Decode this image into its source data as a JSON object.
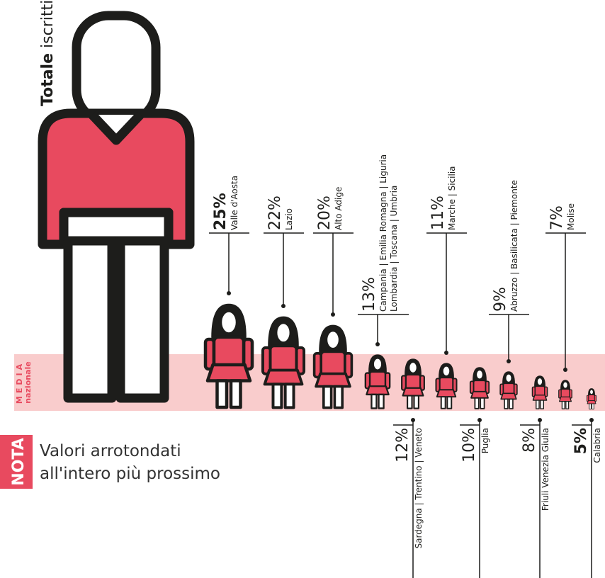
{
  "chart_data": {
    "type": "pictograph",
    "title": "Totale",
    "title_suffix": "iscritti",
    "band_label": "MEDIA",
    "band_sublabel": "nazionale",
    "note_tag": "NOTA",
    "note": [
      "Valori arrotondati",
      "all'intero più prossimo"
    ],
    "categories": [
      "Valle d'Aosta",
      "Lazio",
      "Alto Adige",
      [
        "Campania | Emilia Romagna | Liguria",
        "Lombardia | Toscana | Umbria"
      ],
      "Sardegna | Trentino | Veneto",
      "Marche | Sicilia",
      "Puglia",
      "Abruzzo | Basilicata | Piemonte",
      "Friuli Venezia Giulia",
      "Molise",
      "Calabria"
    ],
    "values": [
      25,
      22,
      20,
      13,
      12,
      11,
      10,
      9,
      8,
      7,
      5
    ],
    "value_labels": [
      "25%",
      "22%",
      "20%",
      "13%",
      "12%",
      "11%",
      "10%",
      "9%",
      "8%",
      "7%",
      "5%"
    ],
    "highlight_indices": [
      0,
      10
    ],
    "color": "#e84a5f",
    "band_color": "#f9cccc"
  }
}
